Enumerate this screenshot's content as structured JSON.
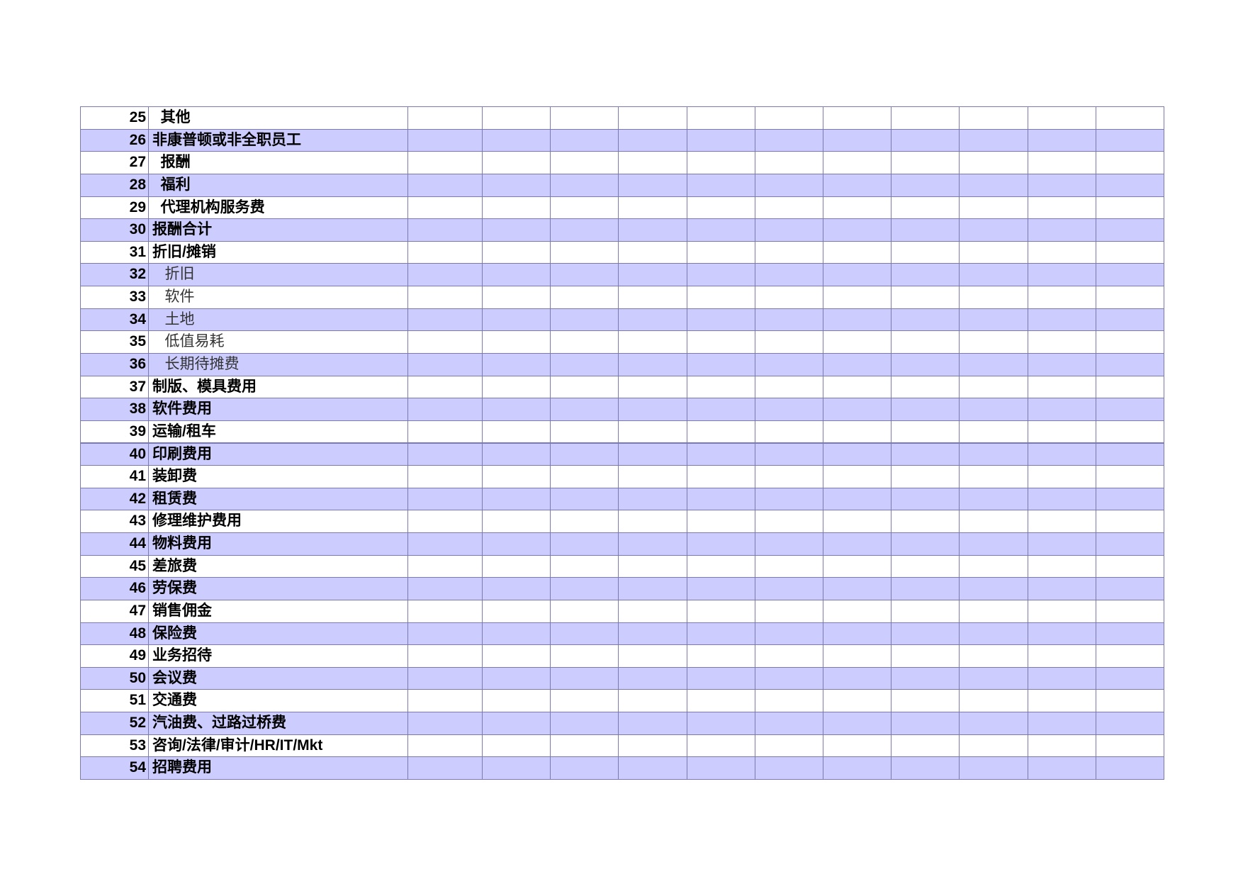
{
  "table": {
    "rows": [
      {
        "number": 25,
        "label": "  其他",
        "bold": true
      },
      {
        "number": 26,
        "label": "非康普顿或非全职员工",
        "bold": true
      },
      {
        "number": 27,
        "label": "  报酬",
        "bold": true
      },
      {
        "number": 28,
        "label": "  福利",
        "bold": true
      },
      {
        "number": 29,
        "label": "  代理机构服务费",
        "bold": true
      },
      {
        "number": 30,
        "label": "报酬合计",
        "bold": true
      },
      {
        "number": 31,
        "label": "折旧/摊销",
        "bold": true
      },
      {
        "number": 32,
        "label": "   折旧",
        "bold": false
      },
      {
        "number": 33,
        "label": "   软件",
        "bold": false
      },
      {
        "number": 34,
        "label": "   土地",
        "bold": false
      },
      {
        "number": 35,
        "label": "   低值易耗",
        "bold": false
      },
      {
        "number": 36,
        "label": "   长期待摊费",
        "bold": false
      },
      {
        "number": 37,
        "label": "制版、模具费用",
        "bold": true
      },
      {
        "number": 38,
        "label": "软件费用",
        "bold": true
      },
      {
        "number": 39,
        "label": "运输/租车",
        "bold": true
      },
      {
        "number": 40,
        "label": "印刷费用",
        "bold": true
      },
      {
        "number": 41,
        "label": "装卸费",
        "bold": true
      },
      {
        "number": 42,
        "label": "租赁费",
        "bold": true
      },
      {
        "number": 43,
        "label": "修理维护费用",
        "bold": true
      },
      {
        "number": 44,
        "label": "物料费用",
        "bold": true
      },
      {
        "number": 45,
        "label": "差旅费",
        "bold": true
      },
      {
        "number": 46,
        "label": "劳保费",
        "bold": true
      },
      {
        "number": 47,
        "label": "销售佣金",
        "bold": true
      },
      {
        "number": 48,
        "label": "保险费",
        "bold": true
      },
      {
        "number": 49,
        "label": "业务招待",
        "bold": true
      },
      {
        "number": 50,
        "label": "会议费",
        "bold": true
      },
      {
        "number": 51,
        "label": "交通费",
        "bold": true
      },
      {
        "number": 52,
        "label": "汽油费、过路过桥费",
        "bold": true
      },
      {
        "number": 53,
        "label": "咨询/法律/审计/HR/IT/Mkt",
        "bold": true
      },
      {
        "number": 54,
        "label": "招聘费用",
        "bold": true
      }
    ]
  }
}
